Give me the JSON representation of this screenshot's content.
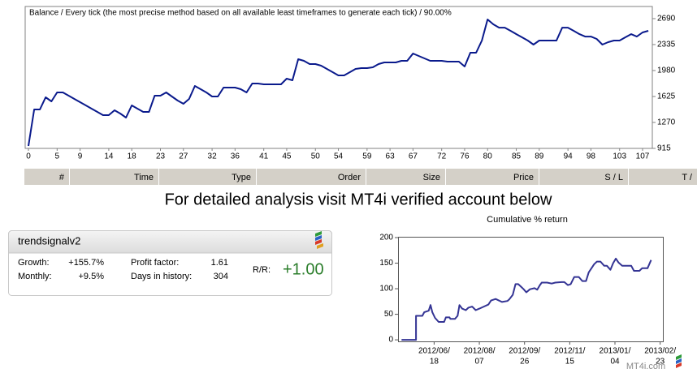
{
  "page": {
    "heading": "For detailed analysis visit MT4i verified account below",
    "watermark": "MT4i.com"
  },
  "table": {
    "header": [
      "#",
      "Time",
      "Type",
      "Order",
      "Size",
      "Price",
      "S / L",
      "T /"
    ]
  },
  "widget": {
    "title": "trendsignalv2",
    "stats": [
      {
        "label": "Growth:",
        "value": "+155.7%"
      },
      {
        "label": "Monthly:",
        "value": "+9.5%"
      },
      {
        "label": "Profit factor:",
        "value": "1.61"
      },
      {
        "label": "Days in history:",
        "value": "304"
      }
    ],
    "ratio_label": "R/R:",
    "ratio": "+1.00"
  },
  "chart_data": [
    {
      "type": "line",
      "title": "Balance / Every tick (the most precise method based on all available least timeframes to generate each tick) / 90.00%",
      "color": "#0a1a8c",
      "y_axis_side": "right",
      "grid": false,
      "x": [
        0,
        1,
        2,
        3,
        4,
        5,
        6,
        7,
        8,
        9,
        10,
        11,
        12,
        13,
        14,
        15,
        16,
        17,
        18,
        19,
        20,
        21,
        22,
        23,
        24,
        25,
        26,
        27,
        28,
        29,
        30,
        31,
        32,
        33,
        34,
        35,
        36,
        37,
        38,
        39,
        40,
        41,
        42,
        43,
        44,
        45,
        46,
        47,
        48,
        49,
        50,
        51,
        52,
        53,
        54,
        55,
        56,
        57,
        58,
        59,
        60,
        61,
        62,
        63,
        64,
        65,
        66,
        67,
        68,
        69,
        70,
        71,
        72,
        73,
        74,
        75,
        76,
        77,
        78,
        79,
        80,
        81,
        82,
        83,
        84,
        85,
        86,
        87,
        88,
        89,
        90,
        91,
        92,
        93,
        94,
        95,
        96,
        97,
        98,
        99,
        100,
        101,
        102,
        103,
        104,
        105,
        106,
        107,
        108
      ],
      "values": [
        948,
        1447,
        1447,
        1614,
        1558,
        1680,
        1680,
        1636,
        1592,
        1547,
        1503,
        1458,
        1414,
        1370,
        1370,
        1436,
        1392,
        1336,
        1503,
        1458,
        1414,
        1414,
        1636,
        1636,
        1680,
        1625,
        1569,
        1525,
        1592,
        1769,
        1725,
        1680,
        1625,
        1625,
        1747,
        1747,
        1747,
        1725,
        1680,
        1802,
        1802,
        1791,
        1791,
        1791,
        1791,
        1869,
        1847,
        2135,
        2113,
        2068,
        2068,
        2046,
        2002,
        1958,
        1913,
        1913,
        1958,
        2002,
        2013,
        2013,
        2024,
        2068,
        2091,
        2091,
        2091,
        2113,
        2113,
        2213,
        2179,
        2146,
        2113,
        2113,
        2113,
        2102,
        2102,
        2102,
        2035,
        2224,
        2224,
        2390,
        2678,
        2612,
        2567,
        2567,
        2523,
        2478,
        2434,
        2390,
        2335,
        2390,
        2390,
        2390,
        2390,
        2567,
        2567,
        2523,
        2478,
        2445,
        2445,
        2412,
        2335,
        2368,
        2390,
        2390,
        2434,
        2478,
        2445,
        2501,
        2523
      ],
      "xlim": [
        0,
        108.7
      ],
      "xticks": [
        0,
        5,
        9,
        14,
        18,
        23,
        27,
        32,
        36,
        41,
        45,
        50,
        54,
        59,
        63,
        67,
        72,
        76,
        80,
        85,
        89,
        94,
        98,
        103,
        107
      ],
      "ylim": [
        915,
        2856
      ],
      "yticks": [
        915,
        1270,
        1625,
        1980,
        2335,
        2690
      ]
    },
    {
      "type": "line",
      "title": "Cumulative % return",
      "color": "#343494",
      "y_axis_side": "left",
      "grid": false,
      "x": [
        "2012-05-13",
        "2012-05-29",
        "2012-05-29",
        "2012-06-05",
        "2012-06-07",
        "2012-06-12",
        "2012-06-14",
        "2012-06-16",
        "2012-06-19",
        "2012-06-23",
        "2012-06-29",
        "2012-07-01",
        "2012-07-05",
        "2012-07-06",
        "2012-07-11",
        "2012-07-14",
        "2012-07-16",
        "2012-07-19",
        "2012-07-23",
        "2012-07-26",
        "2012-07-30",
        "2012-08-03",
        "2012-08-07",
        "2012-08-12",
        "2012-08-17",
        "2012-08-20",
        "2012-08-25",
        "2012-09-01",
        "2012-09-07",
        "2012-09-09",
        "2012-09-13",
        "2012-09-16",
        "2012-09-19",
        "2012-09-22",
        "2012-09-25",
        "2012-09-28",
        "2012-10-02",
        "2012-10-07",
        "2012-10-10",
        "2012-10-13",
        "2012-10-15",
        "2012-10-21",
        "2012-10-26",
        "2012-10-30",
        "2012-11-06",
        "2012-11-09",
        "2012-11-13",
        "2012-11-16",
        "2012-11-20",
        "2012-11-25",
        "2012-11-29",
        "2012-12-03",
        "2012-12-06",
        "2012-12-09",
        "2012-12-12",
        "2012-12-15",
        "2012-12-19",
        "2012-12-23",
        "2012-12-26",
        "2012-12-30",
        "2013-01-02",
        "2013-01-05",
        "2013-01-08",
        "2013-01-12",
        "2013-01-15",
        "2013-01-22",
        "2013-01-25",
        "2013-01-31",
        "2013-02-03",
        "2013-02-07",
        "2013-02-09",
        "2013-02-13"
      ],
      "values": [
        0,
        0,
        47,
        47,
        54,
        57,
        68,
        54,
        43,
        35,
        35,
        44,
        44,
        41,
        41,
        47,
        68,
        61,
        58,
        63,
        65,
        58,
        61,
        65,
        69,
        77,
        80,
        74,
        76,
        79,
        88,
        109,
        109,
        104,
        99,
        93,
        99,
        101,
        98,
        107,
        112,
        112,
        110,
        112,
        113,
        113,
        107,
        109,
        123,
        123,
        115,
        115,
        132,
        140,
        148,
        153,
        153,
        145,
        145,
        137,
        150,
        159,
        151,
        145,
        145,
        145,
        135,
        135,
        140,
        140,
        140,
        156
      ],
      "xlim": [
        "2012-05-10",
        "2013-02-26"
      ],
      "xticks": [
        {
          "value": "2012-06-18",
          "label": [
            "2012/06/",
            "18"
          ]
        },
        {
          "value": "2012-08-07",
          "label": [
            "2012/08/",
            "07"
          ]
        },
        {
          "value": "2012-09-26",
          "label": [
            "2012/09/",
            "26"
          ]
        },
        {
          "value": "2012-11-15",
          "label": [
            "2012/11/",
            "15"
          ]
        },
        {
          "value": "2013-01-04",
          "label": [
            "2013/01/",
            "04"
          ]
        },
        {
          "value": "2013-02-23",
          "label": [
            "2013/02/",
            "23"
          ]
        }
      ],
      "ylim": [
        -3,
        200
      ],
      "yticks": [
        0,
        50,
        100,
        150,
        200
      ]
    }
  ]
}
